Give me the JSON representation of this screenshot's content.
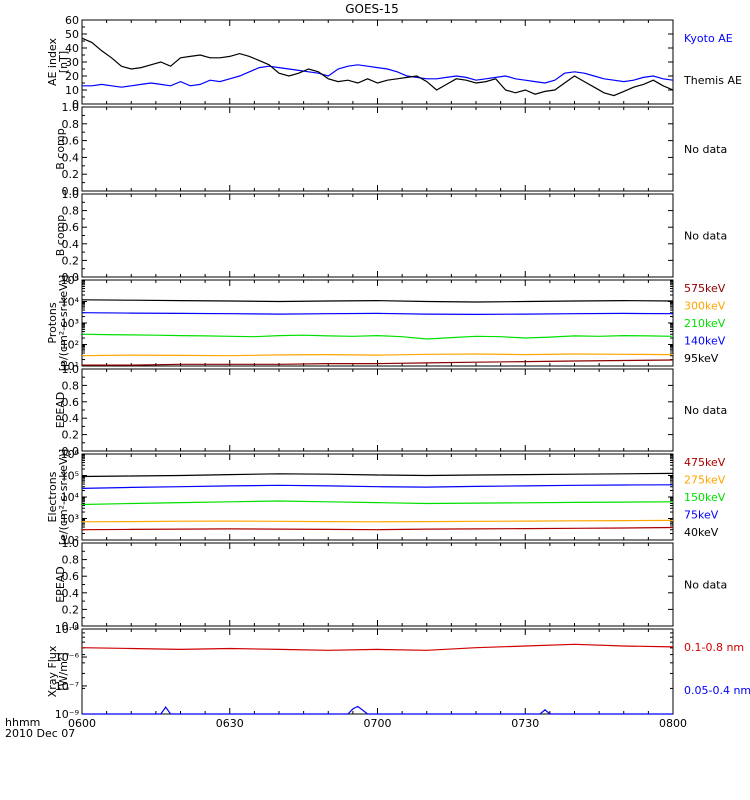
{
  "title": "GOES-15",
  "footer": {
    "label1": "hhmm",
    "label2": "2010 Dec 07"
  },
  "colors": {
    "black": "#000000",
    "blue": "#0000ff",
    "green": "#00e000",
    "orange": "#ffa500",
    "red": "#d00000",
    "darkred": "#b00000",
    "brown": "#8b0000"
  },
  "chart_data": {
    "type": "line",
    "x_tick_labels": [
      "0600",
      "0630",
      "0700",
      "0730",
      "0800"
    ],
    "x_range": [
      "0600",
      "0800"
    ],
    "panels": [
      {
        "ylabel_lines": [
          "AE index",
          "[nT]"
        ],
        "yscale": "linear",
        "ylim": [
          0,
          60
        ],
        "yticks": [
          0,
          10,
          20,
          30,
          40,
          50,
          60
        ],
        "ytick_labels": [
          "0",
          "10",
          "20",
          "30",
          "40",
          "50",
          "60"
        ],
        "no_data_text": "",
        "series": [
          {
            "name": "Kyoto AE",
            "color": "#0000ff",
            "x": [
              0,
              2,
              4,
              6,
              8,
              10,
              12,
              14,
              16,
              18,
              20,
              22,
              24,
              26,
              28,
              30,
              32,
              34,
              36,
              38,
              40,
              42,
              44,
              46,
              48,
              50,
              52,
              54,
              56,
              58,
              60,
              62,
              64,
              66,
              68,
              70,
              72,
              74,
              76,
              78,
              80,
              82,
              84,
              86,
              88,
              90,
              92,
              94,
              96,
              98,
              100,
              102,
              104,
              106,
              108,
              110,
              112,
              114,
              116,
              118,
              120
            ],
            "y": [
              13,
              13,
              14,
              13,
              12,
              13,
              14,
              15,
              14,
              13,
              16,
              13,
              14,
              17,
              16,
              18,
              20,
              23,
              26,
              27,
              26,
              25,
              24,
              23,
              22,
              20,
              25,
              27,
              28,
              27,
              26,
              25,
              23,
              20,
              19,
              18,
              18,
              19,
              20,
              19,
              17,
              18,
              19,
              20,
              18,
              17,
              16,
              15,
              17,
              22,
              23,
              22,
              20,
              18,
              17,
              16,
              17,
              19,
              20,
              18,
              17
            ]
          },
          {
            "name": "Themis AE",
            "color": "#000000",
            "x": [
              0,
              2,
              4,
              6,
              8,
              10,
              12,
              14,
              16,
              18,
              20,
              22,
              24,
              26,
              28,
              30,
              32,
              34,
              36,
              38,
              40,
              42,
              44,
              46,
              48,
              50,
              52,
              54,
              56,
              58,
              60,
              62,
              64,
              66,
              68,
              70,
              72,
              74,
              76,
              78,
              80,
              82,
              84,
              86,
              88,
              90,
              92,
              94,
              96,
              98,
              100,
              102,
              104,
              106,
              108,
              110,
              112,
              114,
              116,
              118,
              120
            ],
            "y": [
              47,
              44,
              38,
              33,
              27,
              25,
              26,
              28,
              30,
              27,
              33,
              34,
              35,
              33,
              33,
              34,
              36,
              34,
              31,
              28,
              22,
              20,
              22,
              25,
              23,
              18,
              16,
              17,
              15,
              18,
              15,
              17,
              18,
              19,
              20,
              16,
              10,
              14,
              18,
              17,
              15,
              16,
              18,
              10,
              8,
              10,
              7,
              9,
              10,
              15,
              20,
              16,
              12,
              8,
              6,
              9,
              12,
              14,
              17,
              13,
              10
            ]
          }
        ]
      },
      {
        "ylabel_lines": [
          "B comp"
        ],
        "yscale": "linear",
        "ylim": [
          0,
          1
        ],
        "yticks": [
          0,
          0.2,
          0.4,
          0.6,
          0.8,
          1.0
        ],
        "ytick_labels": [
          "0.0",
          "0.2",
          "0.4",
          "0.6",
          "0.8",
          "1.0"
        ],
        "no_data_text": "No data",
        "series": []
      },
      {
        "ylabel_lines": [
          "B comp"
        ],
        "yscale": "linear",
        "ylim": [
          0,
          1
        ],
        "yticks": [
          0,
          0.2,
          0.4,
          0.6,
          0.8,
          1.0
        ],
        "ytick_labels": [
          "0.0",
          "0.2",
          "0.4",
          "0.6",
          "0.8",
          "1.0"
        ],
        "no_data_text": "No data",
        "series": []
      },
      {
        "ylabel_lines": [
          "Protons",
          "[p/(cm²-s-sr-keV)]"
        ],
        "yscale": "log",
        "ylim": [
          10,
          100000
        ],
        "yticks": [
          10,
          100,
          1000,
          10000,
          100000
        ],
        "ytick_labels": [
          "10¹",
          "10²",
          "10³",
          "10⁴",
          "10⁵"
        ],
        "no_data_text": "",
        "series": [
          {
            "name": "575keV",
            "color": "#8b0000",
            "x": [
              0,
              10,
              20,
              30,
              40,
              50,
              60,
              70,
              80,
              90,
              100,
              110,
              120
            ],
            "y": [
              11,
              11,
              12,
              12,
              12,
              13,
              13,
              14,
              15,
              16,
              17,
              18,
              19
            ]
          },
          {
            "name": "300keV",
            "color": "#ffa500",
            "x": [
              0,
              10,
              20,
              30,
              40,
              50,
              60,
              70,
              80,
              90,
              100,
              110,
              120
            ],
            "y": [
              30,
              32,
              31,
              30,
              33,
              34,
              32,
              35,
              36,
              34,
              36,
              35,
              34
            ]
          },
          {
            "name": "210keV",
            "color": "#00e000",
            "x": [
              0,
              5,
              10,
              15,
              20,
              25,
              30,
              35,
              40,
              45,
              50,
              55,
              60,
              65,
              70,
              75,
              80,
              85,
              90,
              95,
              100,
              105,
              110,
              115,
              120
            ],
            "y": [
              300,
              290,
              280,
              270,
              260,
              250,
              240,
              230,
              260,
              270,
              250,
              240,
              260,
              230,
              180,
              210,
              240,
              230,
              200,
              220,
              250,
              240,
              260,
              250,
              240
            ]
          },
          {
            "name": "140keV",
            "color": "#0000ff",
            "x": [
              0,
              10,
              20,
              30,
              40,
              50,
              60,
              70,
              80,
              90,
              100,
              110,
              120
            ],
            "y": [
              3000,
              2900,
              2800,
              2700,
              2600,
              2700,
              2800,
              2600,
              2500,
              2600,
              2700,
              2800,
              2700
            ]
          },
          {
            "name": "95keV",
            "color": "#000000",
            "x": [
              0,
              10,
              20,
              30,
              40,
              50,
              60,
              70,
              80,
              90,
              100,
              110,
              120
            ],
            "y": [
              12000,
              11500,
              11000,
              10500,
              10000,
              10500,
              11000,
              10000,
              9500,
              10000,
              10500,
              11000,
              10500
            ]
          }
        ]
      },
      {
        "ylabel_lines": [
          "EPEAD"
        ],
        "yscale": "linear",
        "ylim": [
          0,
          1
        ],
        "yticks": [
          0,
          0.2,
          0.4,
          0.6,
          0.8,
          1.0
        ],
        "ytick_labels": [
          "0.0",
          "0.2",
          "0.4",
          "0.6",
          "0.8",
          "1.0"
        ],
        "no_data_text": "No data",
        "series": []
      },
      {
        "ylabel_lines": [
          "Electrons",
          "[e/(cm²-s-sr-keV)]"
        ],
        "yscale": "log",
        "ylim": [
          100,
          1000000
        ],
        "yticks": [
          100,
          1000,
          10000,
          100000,
          1000000
        ],
        "ytick_labels": [
          "10²",
          "10³",
          "10⁴",
          "10⁵",
          "10⁶"
        ],
        "no_data_text": "",
        "series": [
          {
            "name": "475keV",
            "color": "#b00000",
            "x": [
              0,
              10,
              20,
              30,
              40,
              50,
              60,
              70,
              80,
              90,
              100,
              110,
              120
            ],
            "y": [
              300,
              310,
              320,
              330,
              320,
              310,
              300,
              320,
              330,
              340,
              350,
              360,
              380
            ]
          },
          {
            "name": "275keV",
            "color": "#ffa500",
            "x": [
              0,
              10,
              20,
              30,
              40,
              50,
              60,
              70,
              80,
              90,
              100,
              110,
              120
            ],
            "y": [
              700,
              720,
              750,
              760,
              740,
              720,
              700,
              720,
              740,
              760,
              780,
              800,
              820
            ]
          },
          {
            "name": "150keV",
            "color": "#00e000",
            "x": [
              0,
              10,
              20,
              30,
              40,
              50,
              60,
              70,
              80,
              90,
              100,
              110,
              120
            ],
            "y": [
              4500,
              5000,
              5500,
              6000,
              6500,
              6000,
              5500,
              5000,
              5200,
              5400,
              5600,
              5800,
              6000
            ]
          },
          {
            "name": "75keV",
            "color": "#0000ff",
            "x": [
              0,
              10,
              20,
              30,
              40,
              50,
              60,
              70,
              80,
              90,
              100,
              110,
              120
            ],
            "y": [
              25000,
              28000,
              30000,
              33000,
              35000,
              33000,
              30000,
              29000,
              31000,
              33000,
              35000,
              36000,
              37000
            ]
          },
          {
            "name": "40keV",
            "color": "#000000",
            "x": [
              0,
              10,
              20,
              30,
              40,
              50,
              60,
              70,
              80,
              90,
              100,
              110,
              120
            ],
            "y": [
              90000,
              95000,
              100000,
              110000,
              120000,
              115000,
              105000,
              100000,
              105000,
              110000,
              115000,
              120000,
              125000
            ]
          }
        ]
      },
      {
        "ylabel_lines": [
          "EPEAD"
        ],
        "yscale": "linear",
        "ylim": [
          0,
          1
        ],
        "yticks": [
          0,
          0.2,
          0.4,
          0.6,
          0.8,
          1.0
        ],
        "ytick_labels": [
          "0.0",
          "0.2",
          "0.4",
          "0.6",
          "0.8",
          "1.0"
        ],
        "no_data_text": "No data",
        "series": []
      },
      {
        "ylabel_lines": [
          "Xray Flux",
          "[W/m²]"
        ],
        "yscale": "log",
        "ylim": [
          1e-09,
          1e-08
        ],
        "yticks": [
          1e-09,
          1e-08
        ],
        "ytick_labels": [
          "10⁻⁹",
          "10⁻⁸"
        ],
        "no_data_text": "",
        "extra_tick_labels": [
          {
            "text": "10⁻⁷",
            "frac": 0.33
          },
          {
            "text": "10⁻⁶",
            "frac": 0.67
          }
        ],
        "series": [
          {
            "name": "0.1-0.8 nm",
            "color": "#d00000",
            "frac": true,
            "x": [
              0,
              10,
              20,
              30,
              40,
              50,
              60,
              70,
              80,
              90,
              100,
              110,
              120
            ],
            "y": [
              0.78,
              0.77,
              0.76,
              0.77,
              0.76,
              0.75,
              0.76,
              0.75,
              0.78,
              0.8,
              0.82,
              0.8,
              0.79
            ]
          },
          {
            "name": "0.05-0.4 nm",
            "color": "#0000ff",
            "frac": true,
            "x": [
              0,
              10,
              16,
              17,
              18,
              20,
              30,
              40,
              50,
              54,
              55,
              56,
              58,
              60,
              70,
              80,
              90,
              93,
              94,
              95,
              96,
              100,
              110,
              120
            ],
            "y": [
              0.0,
              0.0,
              0.0,
              0.08,
              0.0,
              0.0,
              0.0,
              0.0,
              0.0,
              0.0,
              0.06,
              0.09,
              0.0,
              0.0,
              0.0,
              0.0,
              0.0,
              0.0,
              0.05,
              0.0,
              0.0,
              0.0,
              0.0,
              0.0
            ]
          }
        ]
      }
    ]
  }
}
